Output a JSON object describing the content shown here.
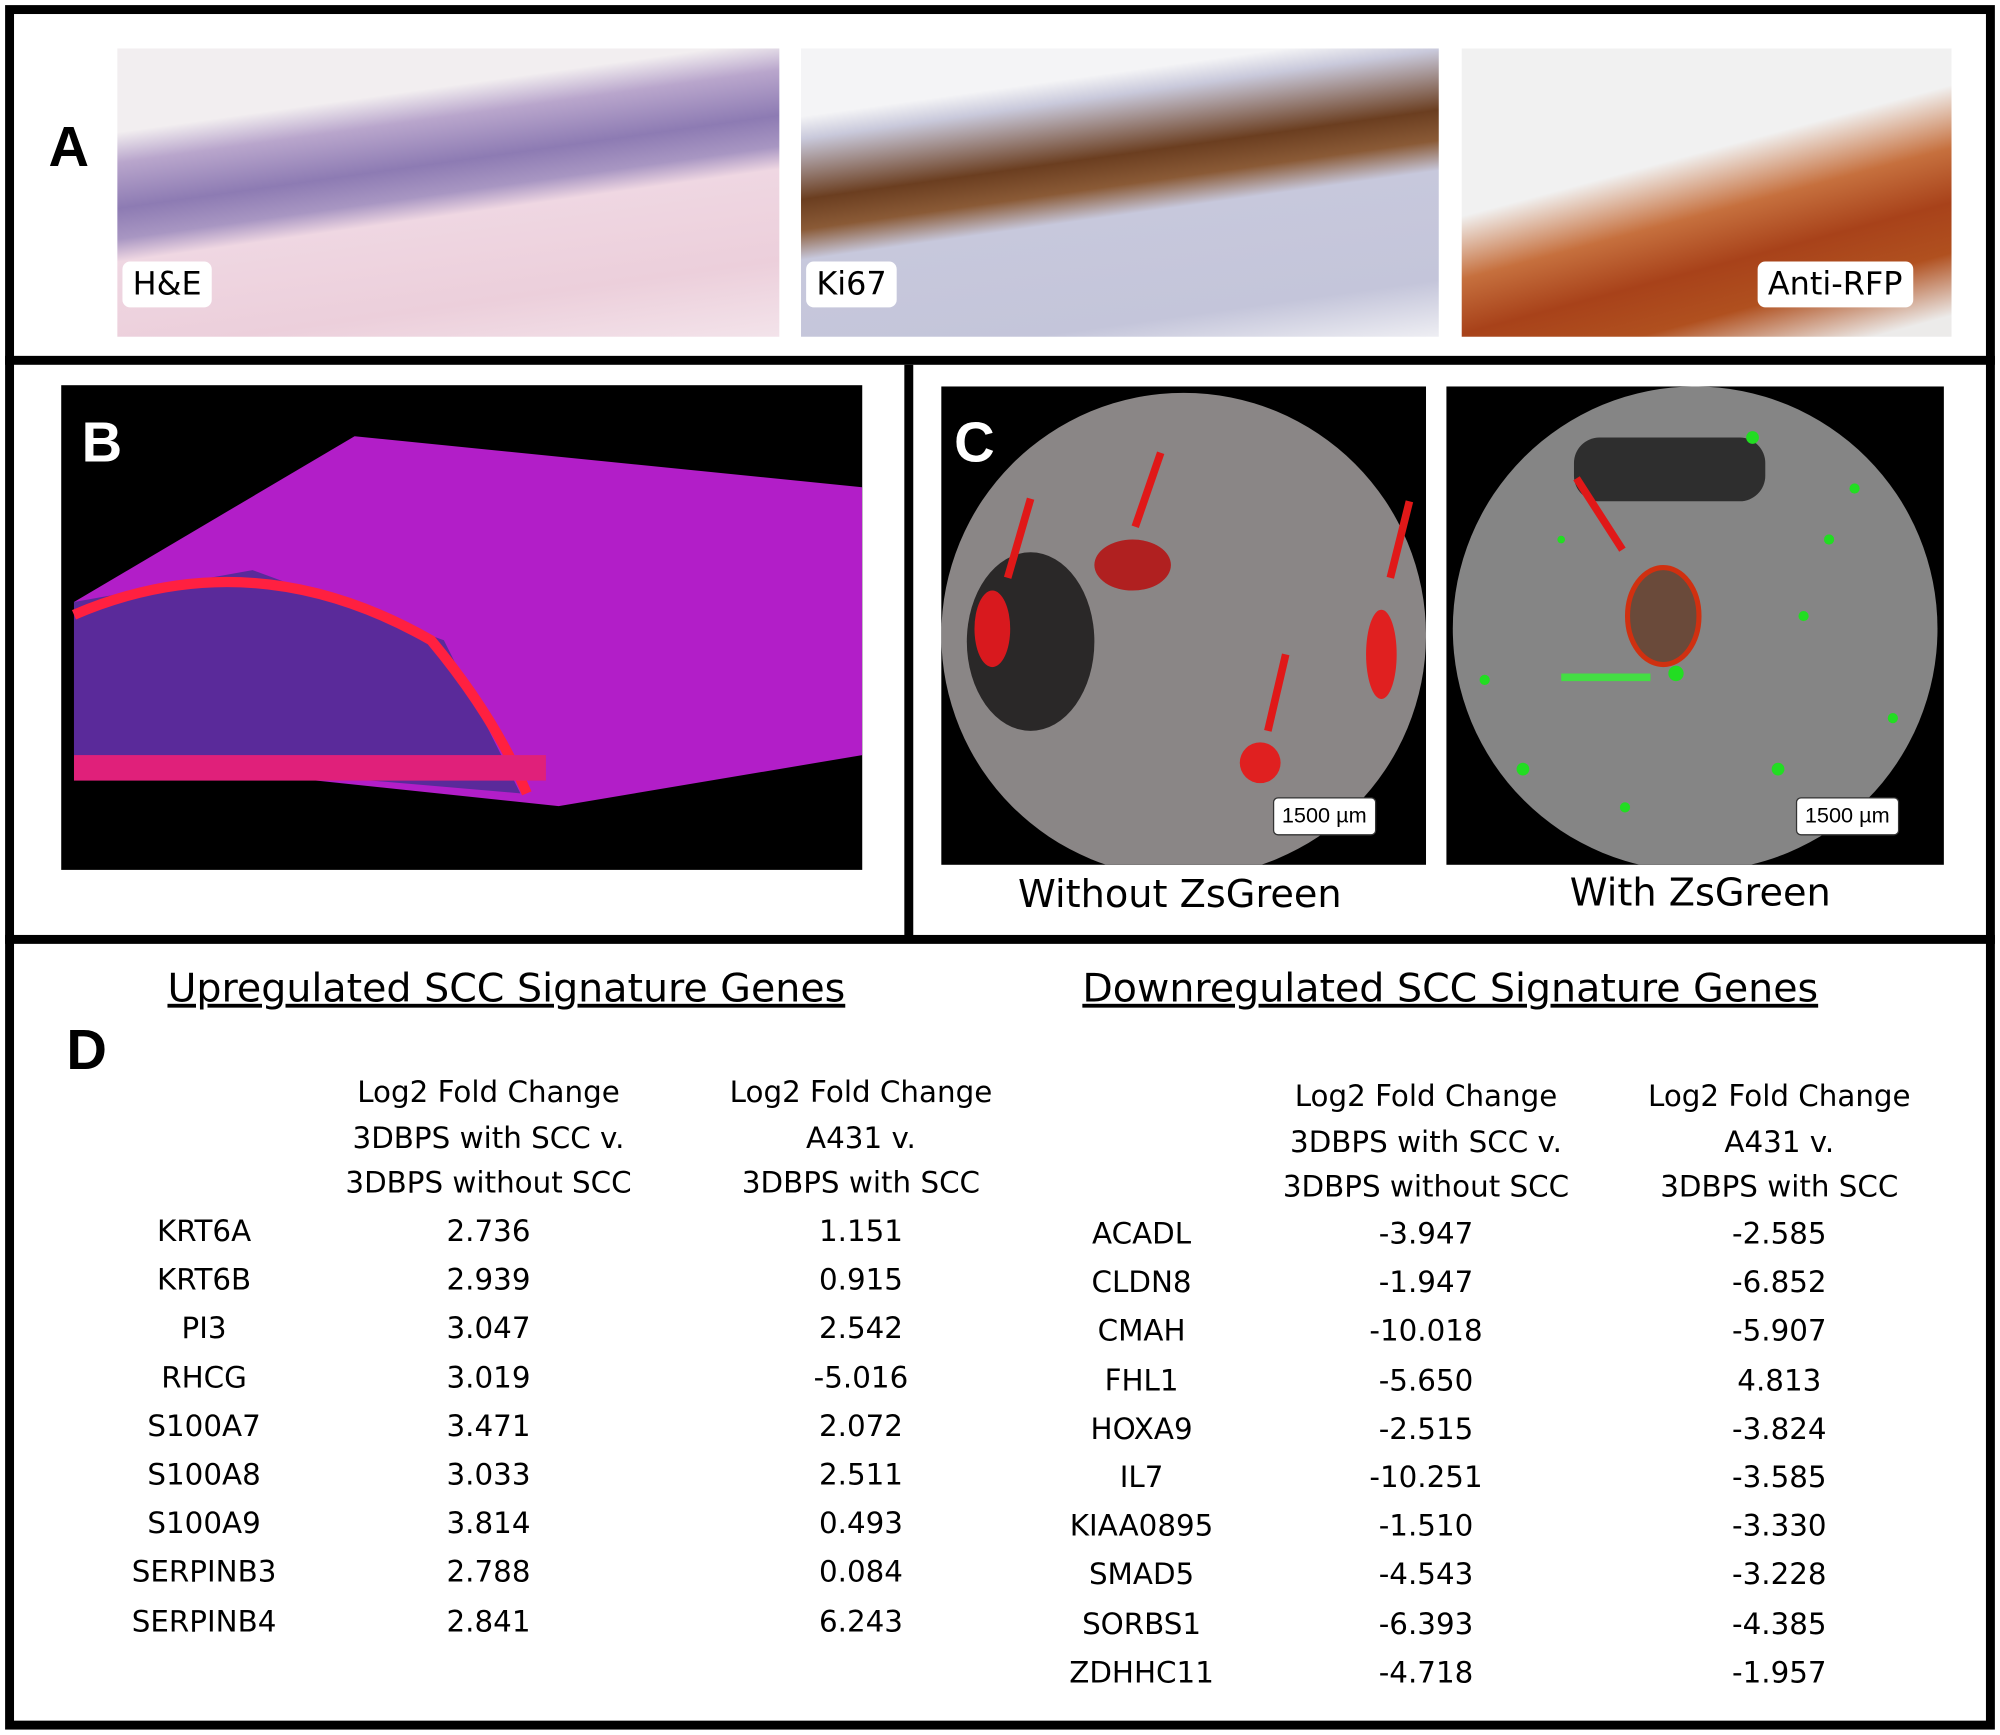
{
  "panel_a": {
    "label": "A",
    "images": [
      {
        "caption": "H&E"
      },
      {
        "caption": "Ki67"
      },
      {
        "caption": "Anti-RFP"
      }
    ]
  },
  "panel_b": {
    "label": "B"
  },
  "panel_c": {
    "label": "C",
    "images": [
      {
        "caption": "Without ZsGreen",
        "scale_bar": "1500 µm"
      },
      {
        "caption": "With ZsGreen",
        "scale_bar": "1500 µm"
      }
    ]
  },
  "panel_d": {
    "label": "D",
    "tables": [
      {
        "title": "Upregulated SCC Signature Genes",
        "columns": [
          [
            "Log2 Fold Change",
            "3DBPS with SCC v.",
            "3DBPS without SCC"
          ],
          [
            "Log2 Fold Change",
            "A431 v.",
            "3DBPS with SCC"
          ]
        ],
        "rows": [
          [
            "KRT6A",
            "2.736",
            "1.151"
          ],
          [
            "KRT6B",
            "2.939",
            "0.915"
          ],
          [
            "PI3",
            "3.047",
            "2.542"
          ],
          [
            "RHCG",
            "3.019",
            "-5.016"
          ],
          [
            "S100A7",
            "3.471",
            "2.072"
          ],
          [
            "S100A8",
            "3.033",
            "2.511"
          ],
          [
            "S100A9",
            "3.814",
            "0.493"
          ],
          [
            "SERPINB3",
            "2.788",
            "0.084"
          ],
          [
            "SERPINB4",
            "2.841",
            "6.243"
          ]
        ]
      },
      {
        "title": "Downregulated SCC Signature Genes",
        "columns": [
          [
            "Log2 Fold Change",
            "3DBPS with SCC v.",
            "3DBPS without SCC"
          ],
          [
            "Log2 Fold Change",
            "A431 v.",
            "3DBPS with SCC"
          ]
        ],
        "rows": [
          [
            "ACADL",
            "-3.947",
            "-2.585"
          ],
          [
            "CLDN8",
            "-1.947",
            "-6.852"
          ],
          [
            "CMAH",
            "-10.018",
            "-5.907"
          ],
          [
            "FHL1",
            "-5.650",
            "4.813"
          ],
          [
            "HOXA9",
            "-2.515",
            "-3.824"
          ],
          [
            "IL7",
            "-10.251",
            "-3.585"
          ],
          [
            "KIAA0895",
            "-1.510",
            "-3.330"
          ],
          [
            "SMAD5",
            "-4.543",
            "-3.228"
          ],
          [
            "SORBS1",
            "-6.393",
            "-4.385"
          ],
          [
            "ZDHHC11",
            "-4.718",
            "-1.957"
          ]
        ]
      }
    ]
  }
}
